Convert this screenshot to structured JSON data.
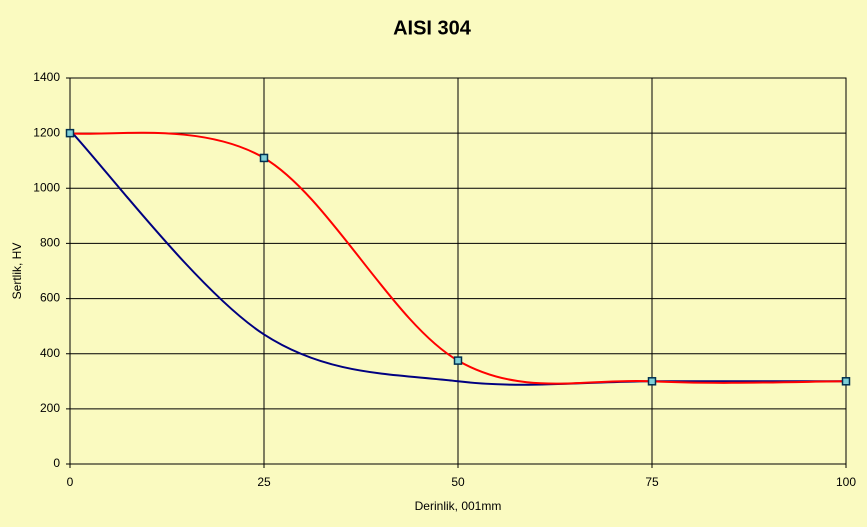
{
  "chart_data": {
    "type": "line",
    "title": "AISI 304",
    "x_label": "Derinlik, 001mm",
    "y_label": "Sertlik, HV",
    "x": [
      0,
      25,
      50,
      75,
      100
    ],
    "series": [
      {
        "color": "#000080",
        "values": [
          1210,
          470,
          300,
          300,
          300
        ],
        "markers": false
      },
      {
        "color": "#ff0000",
        "values": [
          1200,
          1110,
          375,
          300,
          300
        ],
        "markers": true
      }
    ],
    "xlim": [
      0,
      100
    ],
    "xticks": [
      0,
      25,
      50,
      75,
      100
    ],
    "ylim": [
      0,
      1400
    ],
    "yticks": [
      0,
      200,
      400,
      600,
      800,
      1000,
      1200,
      1400
    ],
    "grid": true,
    "smooth": true
  }
}
